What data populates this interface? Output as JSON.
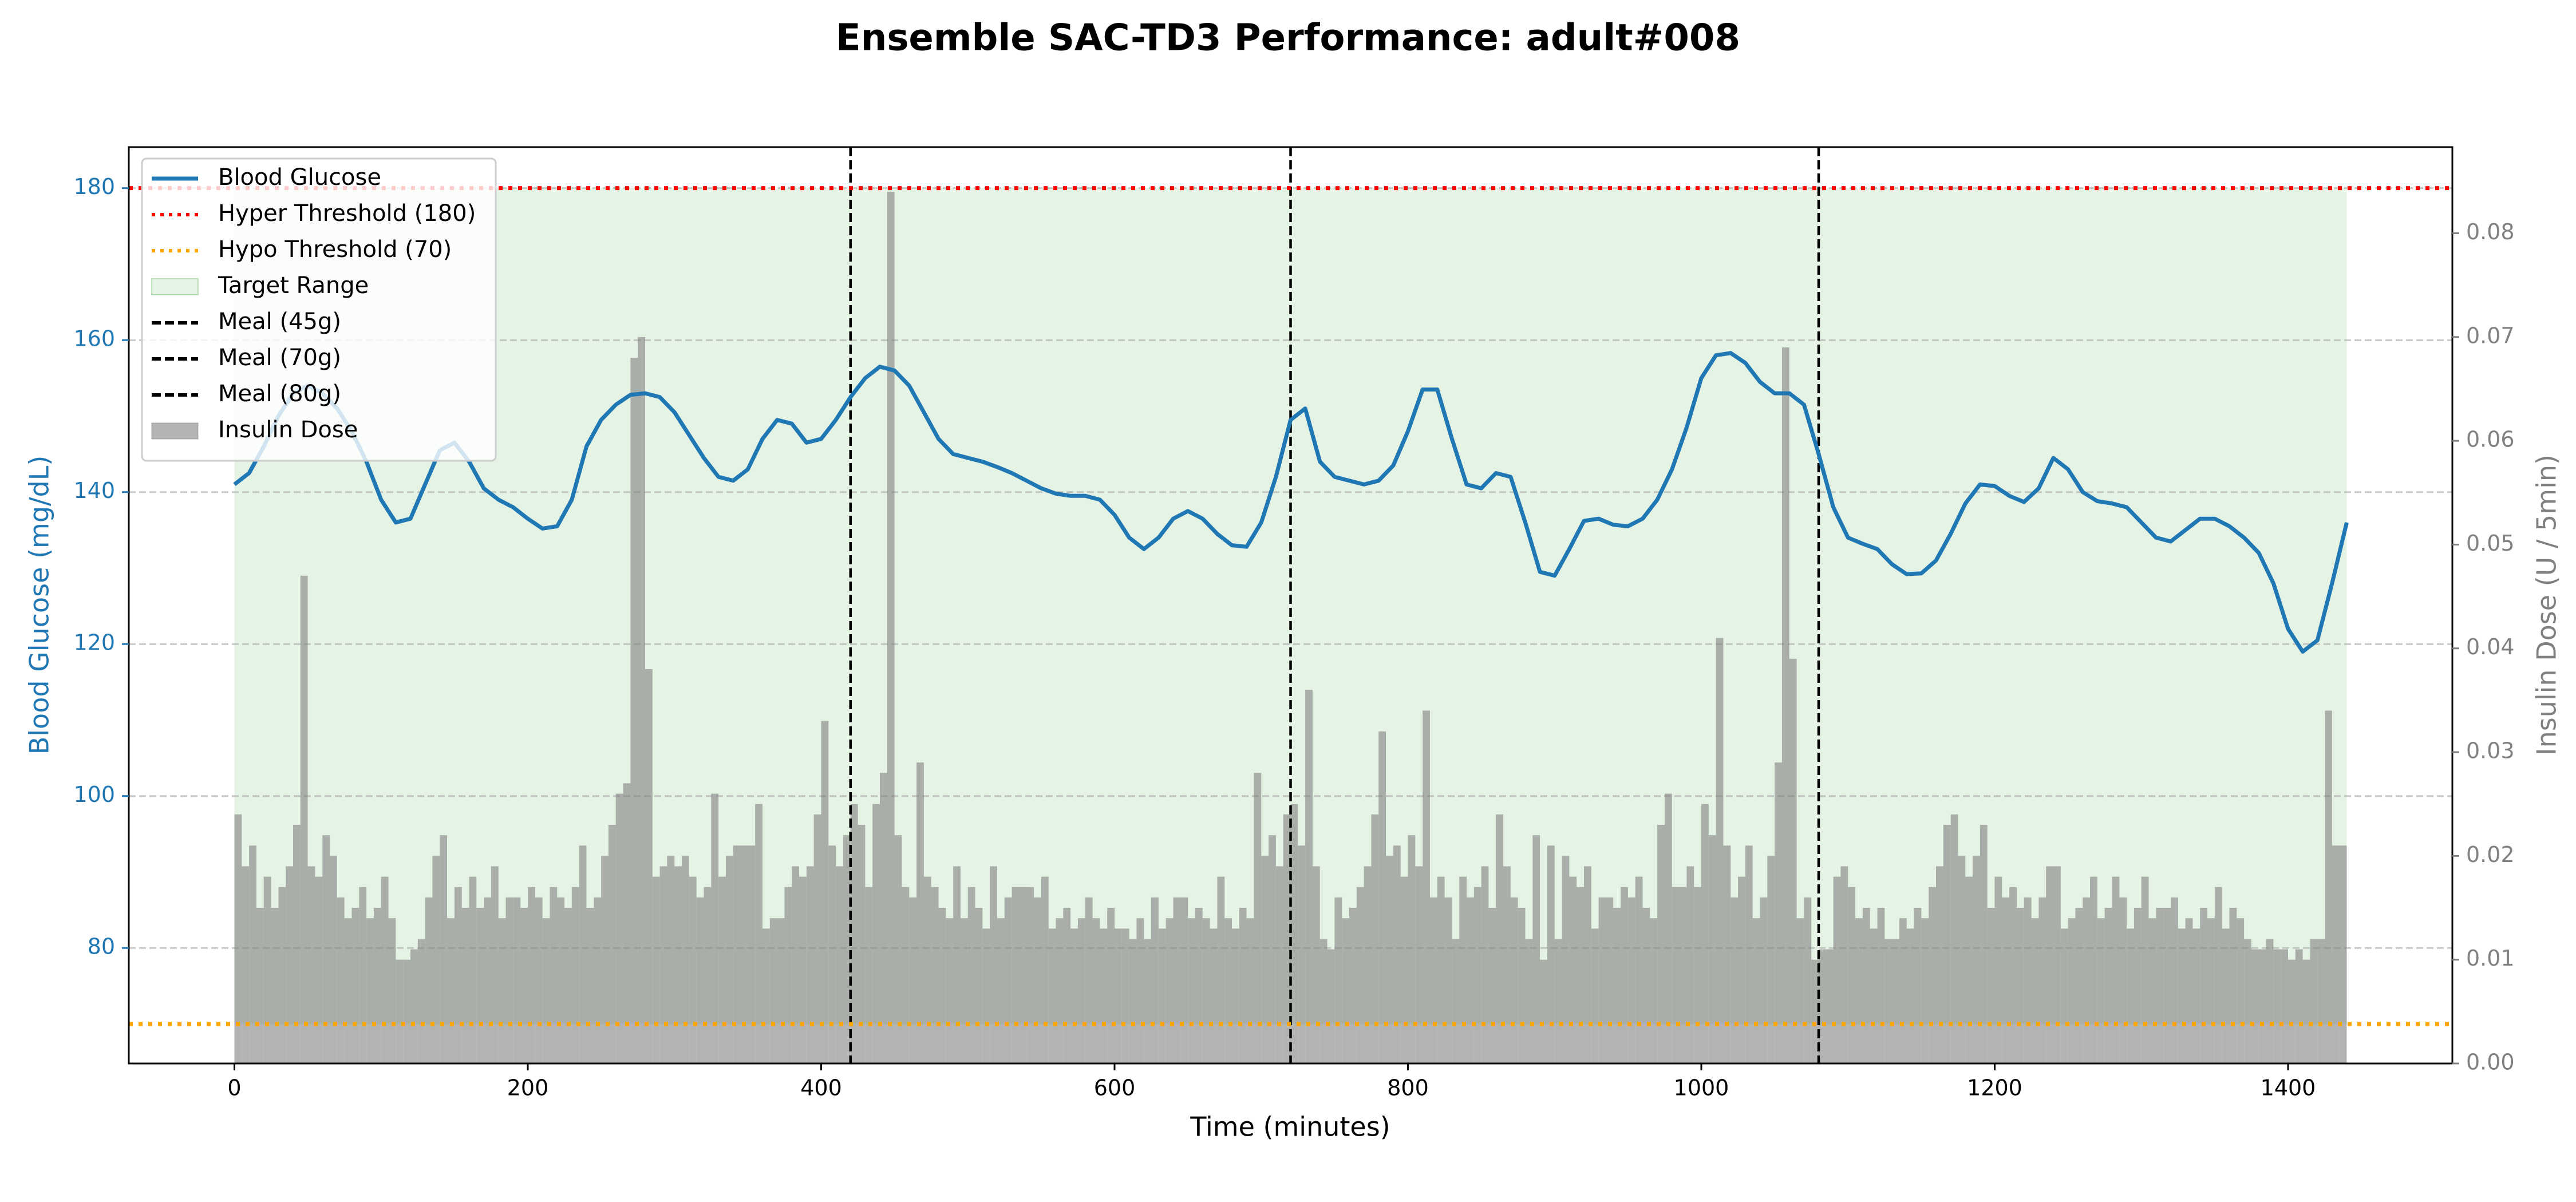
{
  "chart_data": {
    "type": "line",
    "title": "Ensemble SAC-TD3 Performance: adult#008",
    "xlabel": "Time (minutes)",
    "ylabel": "Blood Glucose (mg/dL)",
    "y2label": "Insulin Dose (U / 5min)",
    "xlim": [
      -72,
      1512
    ],
    "xticks": [
      0,
      200,
      400,
      600,
      800,
      1000,
      1200,
      1400
    ],
    "ylim": [
      64.8,
      185.4
    ],
    "yticks": [
      80,
      100,
      120,
      140,
      160,
      180
    ],
    "y2lim": [
      0,
      0.0883
    ],
    "y2ticks": [
      {
        "value": 0,
        "label": "0.00"
      },
      {
        "value": 0.01,
        "label": "0.01"
      },
      {
        "value": 0.02,
        "label": "0.02"
      },
      {
        "value": 0.03,
        "label": "0.03"
      },
      {
        "value": 0.04,
        "label": "0.04"
      },
      {
        "value": 0.05,
        "label": "0.05"
      },
      {
        "value": 0.06,
        "label": "0.06"
      },
      {
        "value": 0.07,
        "label": "0.07"
      },
      {
        "value": 0.08,
        "label": "0.08"
      }
    ],
    "grid": true,
    "legend": "upper left",
    "series": [
      {
        "name": "Blood Glucose",
        "type": "line",
        "color": "#1f77b4",
        "x": [
          0,
          10,
          20,
          30,
          40,
          50,
          60,
          70,
          80,
          90,
          100,
          110,
          120,
          130,
          140,
          150,
          160,
          170,
          180,
          190,
          200,
          210,
          220,
          230,
          240,
          250,
          260,
          270,
          280,
          290,
          300,
          310,
          320,
          330,
          340,
          350,
          360,
          370,
          380,
          390,
          400,
          410,
          420,
          430,
          440,
          450,
          460,
          470,
          480,
          490,
          500,
          510,
          520,
          530,
          540,
          550,
          560,
          570,
          580,
          590,
          600,
          610,
          620,
          630,
          640,
          650,
          660,
          670,
          680,
          690,
          700,
          710,
          720,
          730,
          740,
          750,
          760,
          770,
          780,
          790,
          800,
          810,
          820,
          830,
          840,
          850,
          860,
          870,
          880,
          890,
          900,
          910,
          920,
          930,
          940,
          950,
          960,
          970,
          980,
          990,
          1000,
          1010,
          1020,
          1030,
          1040,
          1050,
          1060,
          1070,
          1080,
          1090,
          1100,
          1110,
          1120,
          1130,
          1140,
          1150,
          1160,
          1170,
          1180,
          1190,
          1200,
          1210,
          1220,
          1230,
          1240,
          1250,
          1260,
          1270,
          1280,
          1290,
          1300,
          1310,
          1320,
          1330,
          1340,
          1350,
          1360,
          1370,
          1380,
          1390,
          1400,
          1410,
          1420,
          1430,
          1440
        ],
        "values": [
          141,
          142.5,
          146,
          150,
          153,
          154,
          153,
          151,
          148,
          144,
          139,
          136,
          136.5,
          141,
          145.5,
          146.5,
          144,
          140.5,
          139,
          138,
          136.5,
          135.2,
          135.5,
          139,
          146,
          149.5,
          151.5,
          152.8,
          153,
          152.5,
          150.5,
          147.5,
          144.5,
          142,
          141.5,
          143,
          147,
          149.5,
          149,
          146.5,
          147,
          149.5,
          152.5,
          155,
          156.5,
          156,
          154,
          150.5,
          147,
          145,
          144.5,
          144,
          143.3,
          142.5,
          141.5,
          140.5,
          139.8,
          139.5,
          139.5,
          139,
          137,
          134,
          132.5,
          134,
          136.5,
          137.5,
          136.5,
          134.5,
          133,
          132.8,
          136,
          142,
          149.5,
          151,
          144,
          142,
          141.5,
          141,
          141.5,
          143.5,
          148,
          153.5,
          153.5,
          147,
          141,
          140.5,
          142.5,
          142,
          136,
          129.5,
          129,
          132.5,
          136.2,
          136.5,
          135.7,
          135.5,
          136.5,
          139,
          143,
          148.5,
          155,
          158,
          158.3,
          157,
          154.5,
          153,
          153,
          151.5,
          145,
          138,
          134,
          133.2,
          132.5,
          130.5,
          129.2,
          129.3,
          131,
          134.5,
          138.5,
          141,
          140.8,
          139.5,
          138.7,
          140.5,
          144.5,
          143,
          140,
          138.8,
          138.5,
          138,
          136,
          134,
          133.5,
          135,
          136.5,
          136.5,
          135.5,
          134,
          132,
          128,
          122,
          119,
          120.5,
          128,
          136
        ]
      },
      {
        "name": "Insulin Dose",
        "type": "bar",
        "axis": "y2",
        "color": "#808080",
        "alpha": 0.6,
        "x": [
          0,
          5,
          10,
          15,
          20,
          25,
          30,
          35,
          40,
          45,
          50,
          55,
          60,
          65,
          70,
          75,
          80,
          85,
          90,
          95,
          100,
          105,
          110,
          115,
          120,
          125,
          130,
          135,
          140,
          145,
          150,
          155,
          160,
          165,
          170,
          175,
          180,
          185,
          190,
          195,
          200,
          205,
          210,
          215,
          220,
          225,
          230,
          235,
          240,
          245,
          250,
          255,
          260,
          265,
          270,
          275,
          280,
          285,
          290,
          295,
          300,
          305,
          310,
          315,
          320,
          325,
          330,
          335,
          340,
          345,
          350,
          355,
          360,
          365,
          370,
          375,
          380,
          385,
          390,
          395,
          400,
          405,
          410,
          415,
          420,
          425,
          430,
          435,
          440,
          445,
          450,
          455,
          460,
          465,
          470,
          475,
          480,
          485,
          490,
          495,
          500,
          505,
          510,
          515,
          520,
          525,
          530,
          535,
          540,
          545,
          550,
          555,
          560,
          565,
          570,
          575,
          580,
          585,
          590,
          595,
          600,
          605,
          610,
          615,
          620,
          625,
          630,
          635,
          640,
          645,
          650,
          655,
          660,
          665,
          670,
          675,
          680,
          685,
          690,
          695,
          700,
          705,
          710,
          715,
          720,
          725,
          730,
          735,
          740,
          745,
          750,
          755,
          760,
          765,
          770,
          775,
          780,
          785,
          790,
          795,
          800,
          805,
          810,
          815,
          820,
          825,
          830,
          835,
          840,
          845,
          850,
          855,
          860,
          865,
          870,
          875,
          880,
          885,
          890,
          895,
          900,
          905,
          910,
          915,
          920,
          925,
          930,
          935,
          940,
          945,
          950,
          955,
          960,
          965,
          970,
          975,
          980,
          985,
          990,
          995,
          1000,
          1005,
          1010,
          1015,
          1020,
          1025,
          1030,
          1035,
          1040,
          1045,
          1050,
          1055,
          1060,
          1065,
          1070,
          1075,
          1080,
          1085,
          1090,
          1095,
          1100,
          1105,
          1110,
          1115,
          1120,
          1125,
          1130,
          1135,
          1140,
          1145,
          1150,
          1155,
          1160,
          1165,
          1170,
          1175,
          1180,
          1185,
          1190,
          1195,
          1200,
          1205,
          1210,
          1215,
          1220,
          1225,
          1230,
          1235,
          1240,
          1245,
          1250,
          1255,
          1260,
          1265,
          1270,
          1275,
          1280,
          1285,
          1290,
          1295,
          1300,
          1305,
          1310,
          1315,
          1320,
          1325,
          1330,
          1335,
          1340,
          1345,
          1350,
          1355,
          1360,
          1365,
          1370,
          1375,
          1380,
          1385,
          1390,
          1395,
          1400,
          1405,
          1410,
          1415,
          1420,
          1425,
          1430,
          1435
        ],
        "values": [
          0.024,
          0.019,
          0.021,
          0.015,
          0.018,
          0.015,
          0.017,
          0.019,
          0.023,
          0.047,
          0.019,
          0.018,
          0.022,
          0.02,
          0.016,
          0.014,
          0.015,
          0.017,
          0.014,
          0.015,
          0.018,
          0.014,
          0.01,
          0.01,
          0.011,
          0.012,
          0.016,
          0.02,
          0.022,
          0.014,
          0.017,
          0.015,
          0.018,
          0.015,
          0.016,
          0.019,
          0.014,
          0.016,
          0.016,
          0.015,
          0.017,
          0.016,
          0.014,
          0.017,
          0.016,
          0.015,
          0.017,
          0.021,
          0.015,
          0.016,
          0.02,
          0.023,
          0.026,
          0.027,
          0.068,
          0.07,
          0.038,
          0.018,
          0.019,
          0.02,
          0.019,
          0.02,
          0.018,
          0.016,
          0.017,
          0.026,
          0.018,
          0.02,
          0.021,
          0.021,
          0.021,
          0.025,
          0.013,
          0.014,
          0.014,
          0.017,
          0.019,
          0.018,
          0.019,
          0.024,
          0.033,
          0.021,
          0.019,
          0.022,
          0.025,
          0.023,
          0.017,
          0.025,
          0.028,
          0.084,
          0.022,
          0.017,
          0.016,
          0.029,
          0.018,
          0.017,
          0.015,
          0.014,
          0.019,
          0.014,
          0.017,
          0.015,
          0.013,
          0.019,
          0.014,
          0.016,
          0.017,
          0.017,
          0.017,
          0.016,
          0.018,
          0.013,
          0.014,
          0.015,
          0.013,
          0.014,
          0.016,
          0.014,
          0.013,
          0.015,
          0.013,
          0.013,
          0.012,
          0.014,
          0.012,
          0.016,
          0.013,
          0.014,
          0.016,
          0.016,
          0.014,
          0.015,
          0.014,
          0.013,
          0.018,
          0.014,
          0.013,
          0.015,
          0.014,
          0.028,
          0.02,
          0.022,
          0.019,
          0.024,
          0.025,
          0.021,
          0.036,
          0.019,
          0.012,
          0.011,
          0.016,
          0.014,
          0.015,
          0.017,
          0.019,
          0.024,
          0.032,
          0.02,
          0.021,
          0.018,
          0.022,
          0.019,
          0.034,
          0.016,
          0.018,
          0.016,
          0.012,
          0.018,
          0.016,
          0.017,
          0.019,
          0.015,
          0.024,
          0.019,
          0.016,
          0.015,
          0.012,
          0.022,
          0.01,
          0.021,
          0.012,
          0.02,
          0.018,
          0.017,
          0.019,
          0.013,
          0.016,
          0.016,
          0.015,
          0.017,
          0.016,
          0.018,
          0.015,
          0.014,
          0.023,
          0.026,
          0.017,
          0.017,
          0.019,
          0.017,
          0.025,
          0.022,
          0.041,
          0.021,
          0.016,
          0.018,
          0.021,
          0.014,
          0.016,
          0.02,
          0.029,
          0.069,
          0.039,
          0.014,
          0.016,
          0.01,
          0.011,
          0.011,
          0.018,
          0.019,
          0.017,
          0.014,
          0.015,
          0.013,
          0.015,
          0.012,
          0.012,
          0.014,
          0.013,
          0.015,
          0.014,
          0.017,
          0.019,
          0.023,
          0.024,
          0.02,
          0.018,
          0.02,
          0.023,
          0.015,
          0.018,
          0.016,
          0.017,
          0.015,
          0.016,
          0.014,
          0.016,
          0.019,
          0.019,
          0.013,
          0.014,
          0.015,
          0.016,
          0.018,
          0.014,
          0.015,
          0.018,
          0.016,
          0.013,
          0.015,
          0.018,
          0.014,
          0.015,
          0.015,
          0.016,
          0.013,
          0.014,
          0.013,
          0.015,
          0.014,
          0.017,
          0.013,
          0.015,
          0.014,
          0.012,
          0.011,
          0.011,
          0.012,
          0.011,
          0.011,
          0.01,
          0.011,
          0.01,
          0.012,
          0.012,
          0.034,
          0.021,
          0.021
        ]
      }
    ],
    "hlines": [
      {
        "name": "Hyper Threshold (180)",
        "value": 180,
        "color": "#ff0000"
      },
      {
        "name": "Hypo Threshold (70)",
        "value": 70,
        "color": "#ffa500"
      }
    ],
    "target_range": {
      "name": "Target Range",
      "x": [
        0,
        1440
      ],
      "y": [
        70,
        180
      ],
      "color": "#2ca02c",
      "alpha": 0.12
    },
    "meals": [
      {
        "name": "Meal (45g)",
        "x": 420
      },
      {
        "name": "Meal (70g)",
        "x": 720
      },
      {
        "name": "Meal (80g)",
        "x": 1080
      }
    ],
    "meal_color": "#000000"
  }
}
